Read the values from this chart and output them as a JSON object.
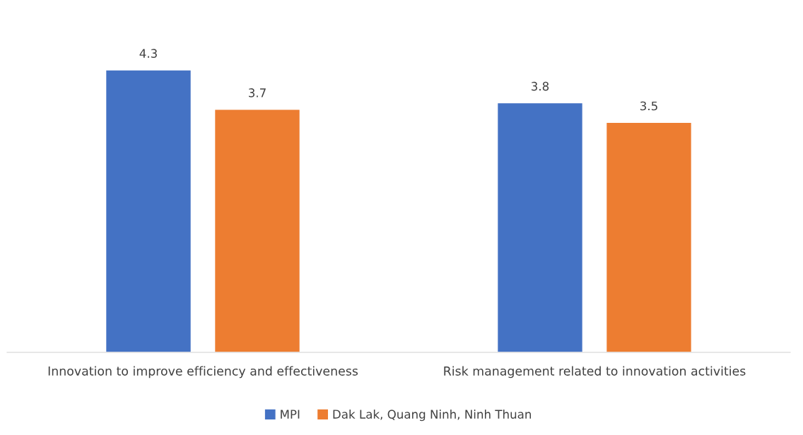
{
  "chart_data": {
    "type": "bar",
    "categories": [
      "Innovation to improve efficiency and effectiveness",
      "Risk management related to innovation activities"
    ],
    "series": [
      {
        "name": "MPI",
        "color": "#4472c4",
        "values": [
          4.3,
          3.8
        ]
      },
      {
        "name": "Dak Lak, Quang Ninh, Ninh Thuan",
        "color": "#ed7d31",
        "values": [
          3.7,
          3.5
        ]
      }
    ],
    "data_labels": true,
    "legend": "bottom"
  }
}
